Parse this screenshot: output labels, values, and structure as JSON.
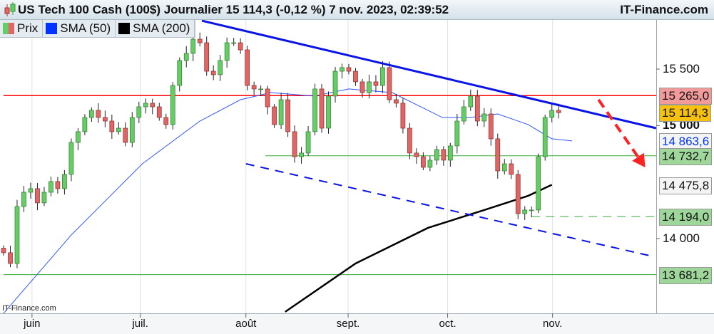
{
  "header": {
    "title": "US Tech 100 Cash (100$) Journalier 15 114,3 (-0,12 %) 7 nov. 2023, 02:39:52",
    "brand": "IT-Finance.com"
  },
  "legend": [
    {
      "label": "Prix",
      "color": "#e06666"
    },
    {
      "label": "SMA (50)",
      "color": "#0033ff"
    },
    {
      "label": "SMA (200)",
      "color": "#000000"
    }
  ],
  "watermark": "IT-Finance.com",
  "chart_data": {
    "type": "candlestick",
    "ylim": [
      13300,
      16000
    ],
    "y_ticks": [
      {
        "label": "15 500",
        "value": 15500
      },
      {
        "label": "15 000",
        "value": 15000,
        "bold": true
      },
      {
        "label": "14 000",
        "value": 14000
      }
    ],
    "price_labels": [
      {
        "label": "15 265,0",
        "value": 15265,
        "bg": "#f39a9a",
        "color": "#111"
      },
      {
        "label": "15 114,3",
        "value": 15114.3,
        "bg": "#f7c20f",
        "color": "#111"
      },
      {
        "label": "14 863,6",
        "value": 14863.6,
        "bg": "#f4f4f4",
        "color": "#0033ff"
      },
      {
        "label": "14 732,7",
        "value": 14732.7,
        "bg": "#9fd79a",
        "color": "#111"
      },
      {
        "label": "14 475,8",
        "value": 14475.8,
        "bg": "#f4f4f4",
        "color": "#111"
      },
      {
        "label": "14 194,0",
        "value": 14194,
        "bg": "#9fd79a",
        "color": "#111"
      },
      {
        "label": "13 681,2",
        "value": 13681.2,
        "bg": "#9fd79a",
        "color": "#111"
      }
    ],
    "x_months": [
      {
        "label": "juin",
        "index": 4.2
      },
      {
        "label": "juil.",
        "index": 20.2
      },
      {
        "label": "août",
        "index": 35.8
      },
      {
        "label": "sept.",
        "index": 50.9
      },
      {
        "label": "oct.",
        "index": 65.6
      },
      {
        "label": "nov.",
        "index": 81.1
      }
    ],
    "closes": [
      13875,
      13780,
      14284,
      14410,
      14442,
      14316,
      14410,
      14505,
      14442,
      14568,
      14851,
      14946,
      15072,
      15135,
      15072,
      15040,
      14946,
      14977,
      14851,
      15072,
      15166,
      15198,
      15166,
      15072,
      15009,
      15355,
      15576,
      15639,
      15765,
      15733,
      15481,
      15450,
      15576,
      15733,
      15733,
      15670,
      15355,
      15324,
      15324,
      15166,
      15009,
      15229,
      14946,
      14725,
      14757,
      14946,
      15324,
      14977,
      15261,
      15481,
      15513,
      15481,
      15387,
      15292,
      15387,
      15355,
      15513,
      15229,
      15198,
      14977,
      14757,
      14725,
      14631,
      14694,
      14788,
      14694,
      14820,
      15040,
      15166,
      15261,
      15040,
      15103,
      14883,
      14599,
      14662,
      14568,
      14221,
      14253,
      14253,
      14725,
      15072,
      15135,
      15114.3
    ],
    "sma50": [
      [
        0,
        13339
      ],
      [
        10,
        14032
      ],
      [
        20.5,
        14662
      ],
      [
        29,
        15040
      ],
      [
        35,
        15229
      ],
      [
        39.5,
        15292
      ],
      [
        45.8,
        15261
      ],
      [
        51,
        15324
      ],
      [
        57.4,
        15292
      ],
      [
        64.8,
        15072
      ],
      [
        69,
        15072
      ],
      [
        73,
        15103
      ],
      [
        77.5,
        15009
      ],
      [
        81,
        14883
      ],
      [
        84,
        14864
      ]
    ],
    "sma200": [
      [
        41.6,
        13352
      ],
      [
        52,
        13780
      ],
      [
        62.7,
        14095
      ],
      [
        71,
        14253
      ],
      [
        77.5,
        14379
      ],
      [
        81,
        14476
      ]
    ],
    "resistance_line": [
      [
        29.3,
        15928
      ],
      [
        96.4,
        14977
      ]
    ],
    "support_dashed_line": [
      [
        35.8,
        14662
      ],
      [
        95.9,
        13843
      ]
    ],
    "levels": [
      {
        "value": 15265,
        "color": "#ff0000",
        "from": 0
      },
      {
        "value": 14732.7,
        "color": "#33aa33",
        "from": 38.7
      },
      {
        "value": 14194,
        "color": "#33aa33",
        "from": 78,
        "dashed": true
      },
      {
        "value": 13681.2,
        "color": "#33aa33",
        "from": 0
      }
    ],
    "arrow": {
      "color": "#ff2222",
      "from": [
        87.9,
        15229
      ],
      "to": [
        94.8,
        14630
      ]
    },
    "colors": {
      "up": "#66cc66",
      "down": "#e06666"
    }
  }
}
